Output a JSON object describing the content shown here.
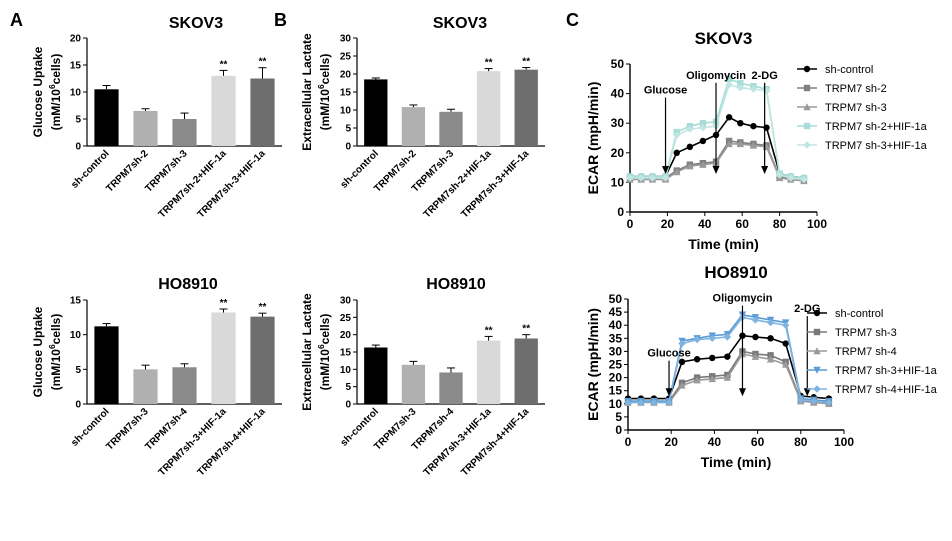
{
  "panel_labels": [
    "A",
    "B",
    "C"
  ],
  "chart_data": [
    {
      "id": "A-top",
      "type": "bar",
      "title": "SKOV3",
      "ylabel_line1": "Glucose Uptake",
      "ylabel_line2": "(mM/10^6cells)",
      "ylim": [
        0,
        20
      ],
      "yticks": [
        0,
        5,
        10,
        15,
        20
      ],
      "categories": [
        "sh-control",
        "TRPM7sh-2",
        "TRPM7sh-3",
        "TRPM7sh-2+HIF-1a",
        "TRPM7sh-3+HIF-1a"
      ],
      "values": [
        10.5,
        6.5,
        5.0,
        13.0,
        12.5
      ],
      "errors": [
        0.7,
        0.4,
        1.1,
        1.0,
        2.0
      ],
      "colors": [
        "#000000",
        "#b0b0b0",
        "#8a8a8a",
        "#d9d9d9",
        "#6e6e6e"
      ],
      "significance": [
        "",
        "",
        "",
        "**",
        "**"
      ]
    },
    {
      "id": "B-top",
      "type": "bar",
      "title": "SKOV3",
      "ylabel_line1": "Extracellular Lactate",
      "ylabel_line2": "(mM/10^6cells)",
      "ylim": [
        0,
        30
      ],
      "yticks": [
        0,
        5,
        10,
        15,
        20,
        25,
        30
      ],
      "categories": [
        "sh-control",
        "TRPM7sh-2",
        "TRPM7sh-3",
        "TRPM7sh-2+HIF-1a",
        "TRPM7sh-3+HIF-1a"
      ],
      "values": [
        18.5,
        10.8,
        9.5,
        20.8,
        21.2
      ],
      "errors": [
        0.4,
        0.6,
        0.7,
        0.7,
        0.6
      ],
      "colors": [
        "#000000",
        "#b0b0b0",
        "#8a8a8a",
        "#d9d9d9",
        "#6e6e6e"
      ],
      "significance": [
        "",
        "",
        "",
        "**",
        "**"
      ]
    },
    {
      "id": "A-bottom",
      "type": "bar",
      "title": "HO8910",
      "ylabel_line1": "Glucose Uptake",
      "ylabel_line2": "(mM/10^6cells)",
      "ylim": [
        0,
        15
      ],
      "yticks": [
        0,
        5,
        10,
        15
      ],
      "categories": [
        "sh-control",
        "TRPM7sh-3",
        "TRPM7sh-4",
        "TRPM7sh-3+HIF-1a",
        "TRPM7sh-4+HIF-1a"
      ],
      "values": [
        11.2,
        5.0,
        5.3,
        13.2,
        12.6
      ],
      "errors": [
        0.4,
        0.6,
        0.5,
        0.5,
        0.5
      ],
      "colors": [
        "#000000",
        "#b0b0b0",
        "#8a8a8a",
        "#d9d9d9",
        "#6e6e6e"
      ],
      "significance": [
        "",
        "",
        "",
        "**",
        "**"
      ]
    },
    {
      "id": "B-bottom",
      "type": "bar",
      "title": "HO8910",
      "ylabel_line1": "Extracellular Lactate",
      "ylabel_line2": "(mM/10^6cells)",
      "ylim": [
        0,
        30
      ],
      "yticks": [
        0,
        5,
        10,
        15,
        20,
        25,
        30
      ],
      "categories": [
        "sh-control",
        "TRPM7sh-3",
        "TRPM7sh-4",
        "TRPM7sh-3+HIF-1a",
        "TRPM7sh-4+HIF-1a"
      ],
      "values": [
        16.3,
        11.3,
        9.1,
        18.3,
        18.9
      ],
      "errors": [
        0.7,
        1.0,
        1.3,
        1.2,
        1.1
      ],
      "colors": [
        "#000000",
        "#b0b0b0",
        "#8a8a8a",
        "#d9d9d9",
        "#6e6e6e"
      ],
      "significance": [
        "",
        "",
        "",
        "**",
        "**"
      ]
    },
    {
      "id": "C-top",
      "type": "line",
      "title": "SKOV3",
      "xlabel": "Time (min)",
      "ylabel": "ECAR (mpH/min)",
      "xlim": [
        0,
        100
      ],
      "ylim": [
        0,
        50
      ],
      "xticks": [
        0,
        20,
        40,
        60,
        80,
        100
      ],
      "yticks": [
        0,
        10,
        20,
        30,
        40,
        50
      ],
      "x": [
        0,
        6,
        12,
        19,
        25,
        32,
        39,
        46,
        53,
        59,
        66,
        73,
        80,
        86,
        93
      ],
      "annotations": [
        {
          "text": "Glucose",
          "x": 19,
          "y": 40
        },
        {
          "text": "Oligomycin",
          "x": 46,
          "y": 45
        },
        {
          "text": "2-DG",
          "x": 72,
          "y": 45
        }
      ],
      "series": [
        {
          "name": "sh-control",
          "color": "#000000",
          "marker": "circle",
          "values": [
            12,
            12,
            12,
            12,
            20,
            22,
            24,
            26,
            32,
            30,
            29,
            28.5,
            13,
            12,
            11.5
          ]
        },
        {
          "name": "TRPM7 sh-2",
          "color": "#808080",
          "marker": "square",
          "values": [
            11.5,
            11.5,
            11.5,
            11.5,
            14,
            16,
            16.5,
            17,
            24,
            23.5,
            23,
            22.5,
            12,
            11.5,
            11
          ]
        },
        {
          "name": "TRPM7 sh-3",
          "color": "#9a9a9a",
          "marker": "triangle",
          "values": [
            11,
            11,
            11,
            11,
            13.5,
            15.5,
            16,
            16.5,
            23,
            23,
            22.5,
            22,
            11.5,
            11,
            10.5
          ]
        },
        {
          "name": "TRPM7 sh-2+HIF-1a",
          "color": "#a8dcd8",
          "marker": "square",
          "values": [
            12,
            12,
            12,
            12,
            27,
            29,
            30,
            30.5,
            45,
            43.5,
            42.5,
            41.5,
            13,
            12,
            11.5
          ]
        },
        {
          "name": "TRPM7 sh-3+HIF-1a",
          "color": "#bfe6e2",
          "marker": "diamond",
          "values": [
            11.5,
            11.5,
            11.5,
            11.5,
            26,
            28,
            28.5,
            29,
            43,
            42,
            41.5,
            41,
            12.5,
            11.5,
            11
          ]
        }
      ]
    },
    {
      "id": "C-bottom",
      "type": "line",
      "title": "HO8910",
      "xlabel": "Time (min)",
      "ylabel": "ECAR (mpH/min)",
      "xlim": [
        0,
        100
      ],
      "ylim": [
        0,
        50
      ],
      "xticks": [
        0,
        20,
        40,
        60,
        80,
        100
      ],
      "yticks": [
        0,
        5,
        10,
        15,
        20,
        25,
        30,
        35,
        40,
        45,
        50
      ],
      "x": [
        0,
        6,
        12,
        19,
        25,
        32,
        39,
        46,
        53,
        59,
        66,
        73,
        80,
        86,
        93
      ],
      "annotations": [
        {
          "text": "Glucose",
          "x": 19,
          "y": 28
        },
        {
          "text": "Oligomycin",
          "x": 53,
          "y": 49
        },
        {
          "text": "2-DG",
          "x": 83,
          "y": 45
        }
      ],
      "series": [
        {
          "name": "sh-control",
          "color": "#000000",
          "marker": "circle",
          "values": [
            12,
            12,
            12,
            12,
            26,
            27,
            27.5,
            28,
            36,
            35.5,
            35,
            33,
            13,
            12.5,
            12
          ]
        },
        {
          "name": "TRPM7 sh-3",
          "color": "#7a7a7a",
          "marker": "square",
          "values": [
            11,
            11,
            11,
            11,
            18,
            20,
            20.5,
            21,
            30,
            29,
            28.5,
            26,
            11.5,
            11,
            10.5
          ]
        },
        {
          "name": "TRPM7 sh-4",
          "color": "#9a9a9a",
          "marker": "triangle",
          "values": [
            10.5,
            10.5,
            10.5,
            10.5,
            17,
            19,
            19.5,
            20,
            29,
            28,
            27,
            25,
            11,
            10.5,
            10
          ]
        },
        {
          "name": "TRPM7 sh-3+HIF-1a",
          "color": "#5b9bd5",
          "marker": "triangle-down",
          "values": [
            11,
            11,
            11,
            11,
            34,
            35,
            36,
            36.5,
            44,
            43,
            42,
            41,
            12,
            11.5,
            11
          ]
        },
        {
          "name": "TRPM7 sh-4+HIF-1a",
          "color": "#7fb3e0",
          "marker": "diamond",
          "values": [
            10.5,
            10.5,
            10.5,
            10.5,
            33,
            34.5,
            35,
            35.5,
            43,
            42,
            41,
            40,
            11.5,
            11,
            10.5
          ]
        }
      ]
    }
  ]
}
